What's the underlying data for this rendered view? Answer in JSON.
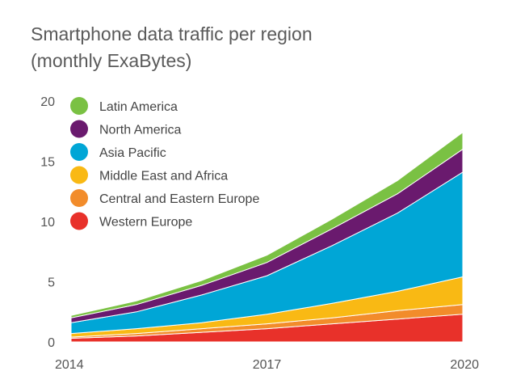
{
  "title_line1": "Smartphone data traffic per region",
  "title_line2": "(monthly ExaBytes)",
  "chart_data": {
    "type": "area",
    "stacked": true,
    "x": [
      2014,
      2015,
      2016,
      2017,
      2018,
      2019,
      2020
    ],
    "x_tick_labels": [
      "2014",
      "2017",
      "2020"
    ],
    "y_tick_labels": [
      "0",
      "5",
      "10",
      "15",
      "20"
    ],
    "ylim": [
      0,
      20
    ],
    "xlim": [
      2014,
      2020
    ],
    "legend_position": "top-left",
    "grid": false,
    "series": [
      {
        "name": "Western Europe",
        "color": "#e8312a",
        "values": [
          0.3,
          0.5,
          0.8,
          1.1,
          1.5,
          1.9,
          2.3
        ]
      },
      {
        "name": "Central and Eastern Europe",
        "color": "#f28c2b",
        "values": [
          0.1,
          0.2,
          0.3,
          0.4,
          0.5,
          0.7,
          0.8
        ]
      },
      {
        "name": "Middle East and Africa",
        "color": "#f9b914",
        "values": [
          0.3,
          0.4,
          0.5,
          0.8,
          1.2,
          1.6,
          2.3
        ]
      },
      {
        "name": "Asia Pacific",
        "color": "#00a6d6",
        "values": [
          0.9,
          1.4,
          2.3,
          3.2,
          4.8,
          6.5,
          8.7
        ]
      },
      {
        "name": "North America",
        "color": "#6a1a6e",
        "values": [
          0.4,
          0.6,
          0.8,
          1.1,
          1.4,
          1.6,
          1.9
        ]
      },
      {
        "name": "Latin America",
        "color": "#7ac143",
        "values": [
          0.2,
          0.3,
          0.4,
          0.6,
          0.8,
          1.1,
          1.4
        ]
      }
    ]
  }
}
